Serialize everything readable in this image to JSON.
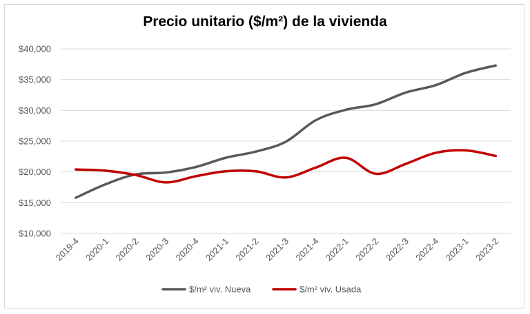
{
  "chart_data": {
    "type": "line",
    "title": "Precio unitario ($/m²) de la vivienda",
    "xlabel": "",
    "ylabel": "",
    "categories": [
      "2019-4",
      "2020-1",
      "2020-2",
      "2020-3",
      "2020-4",
      "2021-1",
      "2021-2",
      "2021-3",
      "2021-4",
      "2022-1",
      "2022-2",
      "2022-3",
      "2022-4",
      "2023-1",
      "2023-2"
    ],
    "ylim": [
      10000,
      40000
    ],
    "yticks": [
      10000,
      15000,
      20000,
      25000,
      30000,
      35000,
      40000
    ],
    "ytick_labels": [
      "$10,000",
      "$15,000",
      "$20,000",
      "$25,000",
      "$30,000",
      "$35,000",
      "$40,000"
    ],
    "grid": true,
    "legend_position": "bottom",
    "series": [
      {
        "name": "$/m² viv. Nueva",
        "color": "#595959",
        "values": [
          15800,
          18000,
          19600,
          19900,
          20800,
          22300,
          23300,
          24900,
          28400,
          30100,
          31000,
          32900,
          34100,
          36100,
          37300
        ]
      },
      {
        "name": "$/m² viv. Usada",
        "color": "#c00000",
        "values": [
          20400,
          20200,
          19500,
          18300,
          19300,
          20100,
          20100,
          19100,
          20700,
          22300,
          19700,
          21300,
          23100,
          23500,
          22600
        ]
      }
    ]
  }
}
